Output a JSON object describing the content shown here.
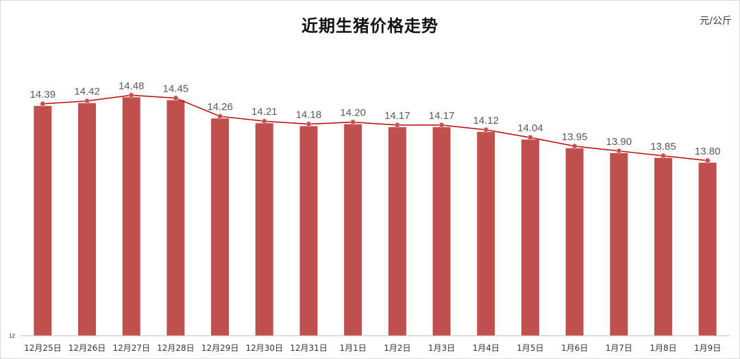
{
  "chart_data": {
    "type": "bar",
    "title": "近期生猪价格走势",
    "unit": "元/公斤",
    "categories": [
      "12月25日",
      "12月26日",
      "12月27日",
      "12月28日",
      "12月29日",
      "12月30日",
      "12月31日",
      "1月1日",
      "1月2日",
      "1月3日",
      "1月4日",
      "1月5日",
      "1月6日",
      "1月7日",
      "1月8日",
      "1月9日"
    ],
    "values": [
      14.39,
      14.42,
      14.48,
      14.45,
      14.26,
      14.21,
      14.18,
      14.2,
      14.17,
      14.17,
      14.12,
      14.04,
      13.95,
      13.9,
      13.85,
      13.8
    ],
    "data_labels": [
      "14.39",
      "14.42",
      "14.48",
      "14.45",
      "14.26",
      "14.21",
      "14.18",
      "14.20",
      "14.17",
      "14.17",
      "14.12",
      "14.04",
      "13.95",
      "13.90",
      "13.85",
      "13.80"
    ],
    "y_tick_label": "12",
    "ylim": [
      12,
      15.2
    ],
    "bar_color": "#c0504d",
    "line_color": "#c00000",
    "grid": false,
    "legend": "none"
  }
}
